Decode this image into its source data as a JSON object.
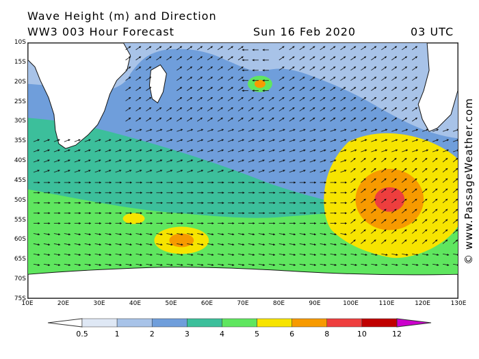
{
  "header": {
    "title": "Wave Height (m) and Direction",
    "subtitle": "WW3 003 Hour Forecast",
    "date": "Sun 16 Feb 2020",
    "time": "03 UTC"
  },
  "axes": {
    "lat_labels": [
      "10S",
      "15S",
      "20S",
      "25S",
      "30S",
      "35S",
      "40S",
      "45S",
      "50S",
      "55S",
      "60S",
      "65S",
      "70S",
      "75S"
    ],
    "lon_labels": [
      "10E",
      "20E",
      "30E",
      "40E",
      "50E",
      "60E",
      "70E",
      "80E",
      "90E",
      "100E",
      "110E",
      "120E",
      "130E"
    ]
  },
  "watermark": {
    "text": "© www.PassageWeather.com"
  },
  "legend": {
    "labels": [
      "0.5",
      "1",
      "2",
      "3",
      "4",
      "5",
      "6",
      "8",
      "10",
      "12"
    ],
    "colors": [
      "#dfe8f5",
      "#a8c3e8",
      "#6f9edb",
      "#3cbf9b",
      "#5fe65f",
      "#f7e400",
      "#f79a00",
      "#ee3e3e",
      "#c00000",
      "#cc00cc"
    ]
  },
  "map": {
    "colors": {
      "ocean_low": "#a8c3e8",
      "ocean_mid": "#6f9edb",
      "teal": "#3cbf9b",
      "green": "#5fe65f",
      "yellow": "#f7e400",
      "orange": "#f79a00",
      "red": "#ee3e3e",
      "land": "#ffffff",
      "arrow": "#111111"
    }
  }
}
